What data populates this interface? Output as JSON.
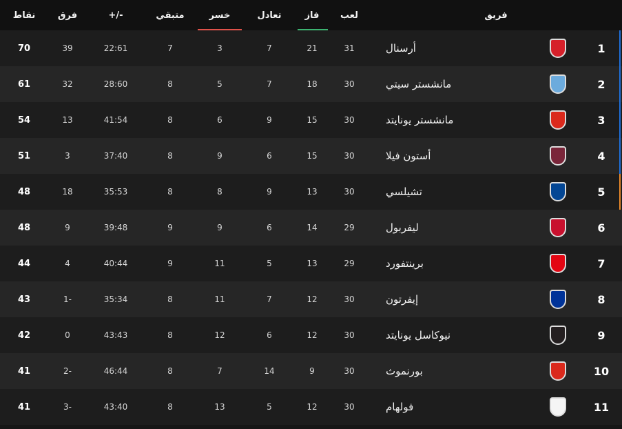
{
  "table": {
    "header": [
      "فريق",
      "لعب",
      "فاز",
      "تعادل",
      "خسر",
      "متبقي",
      "-/+",
      "فرق",
      "نقاط"
    ],
    "rows": [
      [
        1,
        "أرسنال",
        31,
        21,
        7,
        3,
        7,
        "22:61",
        39,
        70
      ],
      [
        2,
        "مانشستر سيتي",
        30,
        18,
        7,
        5,
        8,
        "28:60",
        32,
        61
      ],
      [
        3,
        "مانشستر يونايتد",
        30,
        15,
        9,
        6,
        8,
        "41:54",
        13,
        54
      ],
      [
        4,
        "أستون فيلا",
        30,
        15,
        6,
        9,
        8,
        "37:40",
        3,
        51
      ],
      [
        5,
        "تشيلسي",
        30,
        13,
        9,
        8,
        8,
        "35:53",
        18,
        48
      ],
      [
        6,
        "ليفربول",
        29,
        14,
        6,
        9,
        9,
        "39:48",
        9,
        48
      ],
      [
        7,
        "برينتفورد",
        29,
        13,
        5,
        11,
        9,
        "40:44",
        4,
        44
      ],
      [
        8,
        "إيفرتون",
        30,
        12,
        7,
        11,
        8,
        "35:34",
        "1-",
        43
      ],
      [
        9,
        "نيوكاسل يونايتد",
        30,
        12,
        6,
        12,
        8,
        "43:43",
        0,
        42
      ],
      [
        10,
        "بورنموث",
        30,
        9,
        14,
        7,
        8,
        "46:44",
        "2-",
        41
      ],
      [
        11,
        "فولهام",
        30,
        12,
        5,
        13,
        8,
        "43:40",
        "3-",
        41
      ]
    ]
  }
}
